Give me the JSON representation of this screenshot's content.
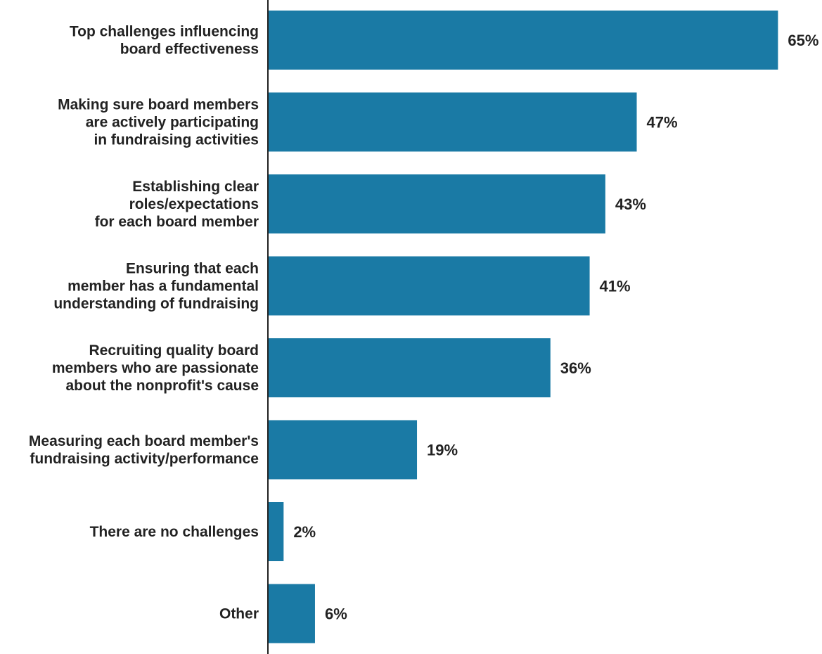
{
  "chart_data": {
    "type": "bar",
    "orientation": "horizontal",
    "categories": [
      [
        "Top challenges influencing",
        "board effectiveness"
      ],
      [
        "Making sure board members",
        "are actively participating",
        "in fundraising activities"
      ],
      [
        "Establishing clear",
        "roles/expectations",
        "for each board member"
      ],
      [
        "Ensuring that each",
        "member has a fundamental",
        "understanding of fundraising"
      ],
      [
        "Recruiting quality board",
        "members who are passionate",
        "about the nonprofit's cause"
      ],
      [
        "Measuring each board member's",
        "fundraising activity/performance"
      ],
      [
        "There are no challenges"
      ],
      [
        "Other"
      ]
    ],
    "values": [
      65,
      47,
      43,
      41,
      36,
      19,
      2,
      6
    ],
    "value_labels": [
      "65%",
      "47%",
      "43%",
      "41%",
      "36%",
      "19%",
      "2%",
      "6%"
    ],
    "bar_color": "#1a7aa5",
    "axis_color": "#222222",
    "grid": false,
    "legend": "none"
  }
}
